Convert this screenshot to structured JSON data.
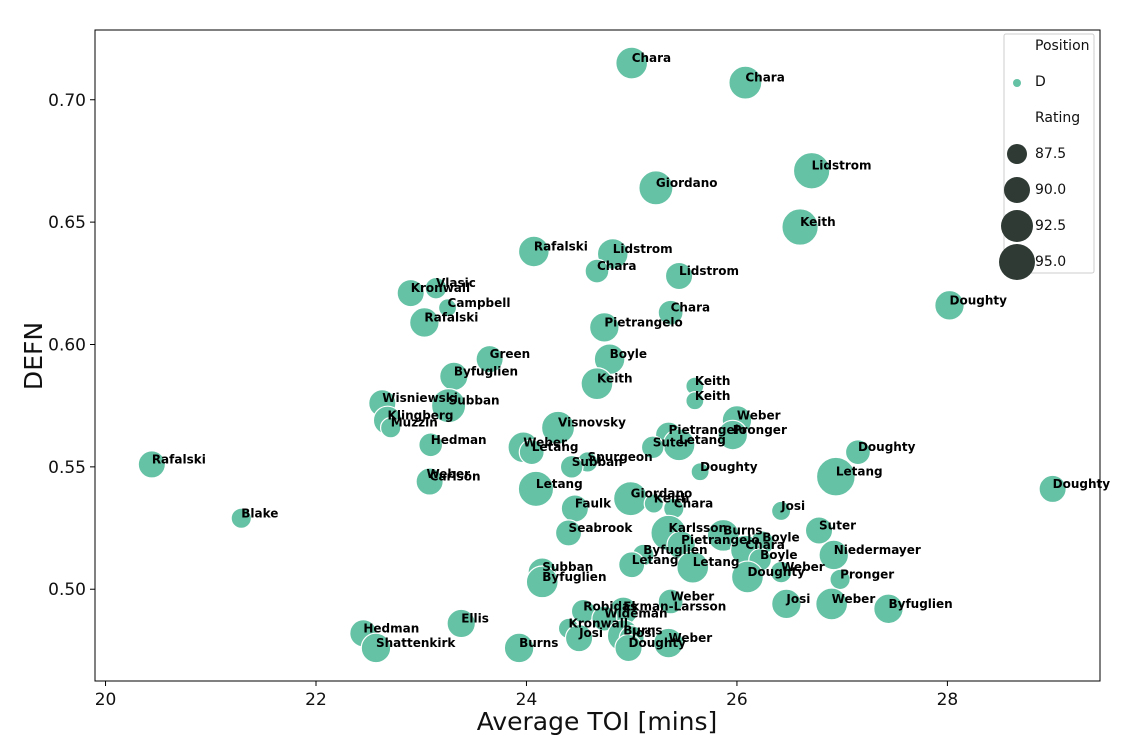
{
  "chart_data": {
    "type": "scatter",
    "xlabel": "Average TOI [mins]",
    "ylabel": "DEFN",
    "xlim": [
      19.9,
      29.45
    ],
    "ylim": [
      0.4625,
      0.7285
    ],
    "xticks": [
      20,
      22,
      24,
      26,
      28
    ],
    "xtick_labels": [
      "20",
      "22",
      "24",
      "26",
      "28"
    ],
    "yticks": [
      0.5,
      0.55,
      0.6,
      0.65,
      0.7
    ],
    "ytick_labels": [
      "0.50",
      "0.55",
      "0.60",
      "0.65",
      "0.70"
    ],
    "grid": false,
    "marker_color": "#66c2a5",
    "legend": {
      "placement": "top-right",
      "hue_title": "Position",
      "hue_entries": [
        {
          "label": "D",
          "color": "#66c2a5"
        }
      ],
      "size_title": "Rating",
      "size_entries": [
        87.5,
        90.0,
        92.5,
        95.0
      ],
      "size_entry_labels": [
        "87.5",
        "90.0",
        "92.5",
        "95.0"
      ],
      "size_entry_color": "#2f3a34"
    },
    "points": [
      {
        "name": "Chara",
        "x": 25.0,
        "y": 0.715,
        "rating": 91.0
      },
      {
        "name": "Chara",
        "x": 26.08,
        "y": 0.707,
        "rating": 91.5
      },
      {
        "name": "Lidstrom",
        "x": 26.71,
        "y": 0.671,
        "rating": 93.0
      },
      {
        "name": "Giordano",
        "x": 25.23,
        "y": 0.664,
        "rating": 92.0
      },
      {
        "name": "Keith",
        "x": 26.6,
        "y": 0.648,
        "rating": 93.0
      },
      {
        "name": "Rafalski",
        "x": 24.07,
        "y": 0.638,
        "rating": 90.5
      },
      {
        "name": "Lidstrom",
        "x": 24.82,
        "y": 0.637,
        "rating": 90.5
      },
      {
        "name": "Chara",
        "x": 24.67,
        "y": 0.63,
        "rating": 87.5
      },
      {
        "name": "Lidstrom",
        "x": 25.45,
        "y": 0.628,
        "rating": 89.0
      },
      {
        "name": "Vlasic",
        "x": 23.14,
        "y": 0.623,
        "rating": 86.5
      },
      {
        "name": "Kronwall",
        "x": 22.9,
        "y": 0.621,
        "rating": 89.0
      },
      {
        "name": "Campbell",
        "x": 23.25,
        "y": 0.615,
        "rating": 85.0
      },
      {
        "name": "Chara",
        "x": 25.37,
        "y": 0.613,
        "rating": 88.0
      },
      {
        "name": "Doughty",
        "x": 28.02,
        "y": 0.616,
        "rating": 90.0
      },
      {
        "name": "Rafalski",
        "x": 23.03,
        "y": 0.609,
        "rating": 90.0
      },
      {
        "name": "Pietrangelo",
        "x": 24.74,
        "y": 0.607,
        "rating": 90.0
      },
      {
        "name": "Green",
        "x": 23.65,
        "y": 0.594,
        "rating": 89.0
      },
      {
        "name": "Boyle",
        "x": 24.79,
        "y": 0.594,
        "rating": 90.5
      },
      {
        "name": "Byfuglien",
        "x": 23.31,
        "y": 0.587,
        "rating": 89.5
      },
      {
        "name": "Keith",
        "x": 24.67,
        "y": 0.584,
        "rating": 91.0
      },
      {
        "name": "Keith",
        "x": 25.6,
        "y": 0.583,
        "rating": 85.0
      },
      {
        "name": "Keith",
        "x": 25.6,
        "y": 0.577,
        "rating": 85.0
      },
      {
        "name": "Wisniewski",
        "x": 22.63,
        "y": 0.576,
        "rating": 89.0
      },
      {
        "name": "Subban",
        "x": 23.26,
        "y": 0.575,
        "rating": 92.0
      },
      {
        "name": "Klingberg",
        "x": 22.68,
        "y": 0.569,
        "rating": 89.5
      },
      {
        "name": "Weber",
        "x": 26.0,
        "y": 0.569,
        "rating": 90.0
      },
      {
        "name": "Muzzin",
        "x": 22.71,
        "y": 0.566,
        "rating": 86.0
      },
      {
        "name": "Visnovsky",
        "x": 24.3,
        "y": 0.566,
        "rating": 91.5
      },
      {
        "name": "Pietrangelo",
        "x": 25.35,
        "y": 0.563,
        "rating": 88.5
      },
      {
        "name": "Pronger",
        "x": 25.96,
        "y": 0.563,
        "rating": 90.0
      },
      {
        "name": "Letang",
        "x": 25.45,
        "y": 0.559,
        "rating": 91.0
      },
      {
        "name": "Hedman",
        "x": 23.09,
        "y": 0.559,
        "rating": 87.5
      },
      {
        "name": "Weber",
        "x": 23.97,
        "y": 0.558,
        "rating": 90.5
      },
      {
        "name": "Suter",
        "x": 25.2,
        "y": 0.558,
        "rating": 87.0
      },
      {
        "name": "Letang",
        "x": 24.05,
        "y": 0.556,
        "rating": 88.0
      },
      {
        "name": "Doughty",
        "x": 27.15,
        "y": 0.556,
        "rating": 88.0
      },
      {
        "name": "Spurgeon",
        "x": 24.58,
        "y": 0.552,
        "rating": 86.0
      },
      {
        "name": "Subban",
        "x": 24.43,
        "y": 0.55,
        "rating": 87.0
      },
      {
        "name": "Rafalski",
        "x": 20.44,
        "y": 0.551,
        "rating": 89.0
      },
      {
        "name": "Doughty",
        "x": 25.65,
        "y": 0.548,
        "rating": 85.0
      },
      {
        "name": "Letang",
        "x": 26.94,
        "y": 0.546,
        "rating": 94.0
      },
      {
        "name": "Weber",
        "x": 23.05,
        "y": 0.545,
        "rating": 86.0
      },
      {
        "name": "Carlson",
        "x": 23.08,
        "y": 0.544,
        "rating": 89.0
      },
      {
        "name": "Letang",
        "x": 24.09,
        "y": 0.541,
        "rating": 92.5
      },
      {
        "name": "Doughty",
        "x": 29.0,
        "y": 0.541,
        "rating": 89.0
      },
      {
        "name": "Giordano",
        "x": 24.99,
        "y": 0.537,
        "rating": 92.0
      },
      {
        "name": "Keith",
        "x": 25.21,
        "y": 0.535,
        "rating": 85.5
      },
      {
        "name": "Chara",
        "x": 25.4,
        "y": 0.533,
        "rating": 86.0
      },
      {
        "name": "Faulk",
        "x": 24.46,
        "y": 0.533,
        "rating": 89.0
      },
      {
        "name": "Josi",
        "x": 26.42,
        "y": 0.532,
        "rating": 85.5
      },
      {
        "name": "Blake",
        "x": 21.29,
        "y": 0.529,
        "rating": 86.0
      },
      {
        "name": "Suter",
        "x": 26.78,
        "y": 0.524,
        "rating": 89.0
      },
      {
        "name": "Karlsson",
        "x": 25.35,
        "y": 0.523,
        "rating": 92.5
      },
      {
        "name": "Seabrook",
        "x": 24.4,
        "y": 0.523,
        "rating": 88.5
      },
      {
        "name": "Burns",
        "x": 25.87,
        "y": 0.522,
        "rating": 91.0
      },
      {
        "name": "Boyle",
        "x": 26.24,
        "y": 0.519,
        "rating": 87.5
      },
      {
        "name": "Pietrangelo",
        "x": 25.47,
        "y": 0.518,
        "rating": 89.5
      },
      {
        "name": "Chara",
        "x": 26.08,
        "y": 0.516,
        "rating": 90.0
      },
      {
        "name": "Niedermayer",
        "x": 26.92,
        "y": 0.514,
        "rating": 90.0
      },
      {
        "name": "Byfuglien",
        "x": 25.11,
        "y": 0.514,
        "rating": 86.5
      },
      {
        "name": "Boyle",
        "x": 26.22,
        "y": 0.512,
        "rating": 87.0
      },
      {
        "name": "Letang",
        "x": 25.0,
        "y": 0.51,
        "rating": 88.5
      },
      {
        "name": "Letang",
        "x": 25.58,
        "y": 0.509,
        "rating": 91.0
      },
      {
        "name": "Weber",
        "x": 26.42,
        "y": 0.507,
        "rating": 86.5
      },
      {
        "name": "Subban",
        "x": 24.15,
        "y": 0.507,
        "rating": 89.5
      },
      {
        "name": "Doughty",
        "x": 26.1,
        "y": 0.505,
        "rating": 91.0
      },
      {
        "name": "Pronger",
        "x": 26.98,
        "y": 0.504,
        "rating": 86.0
      },
      {
        "name": "Byfuglien",
        "x": 24.15,
        "y": 0.503,
        "rating": 91.0
      },
      {
        "name": "Weber",
        "x": 25.37,
        "y": 0.495,
        "rating": 88.0
      },
      {
        "name": "Josi",
        "x": 26.47,
        "y": 0.494,
        "rating": 90.0
      },
      {
        "name": "Weber",
        "x": 26.9,
        "y": 0.494,
        "rating": 91.0
      },
      {
        "name": "Byfuglien",
        "x": 27.44,
        "y": 0.492,
        "rating": 90.0
      },
      {
        "name": "Ekman-Larsson",
        "x": 24.92,
        "y": 0.491,
        "rating": 89.5
      },
      {
        "name": "Robidas",
        "x": 24.54,
        "y": 0.491,
        "rating": 87.5
      },
      {
        "name": "Wideman",
        "x": 24.74,
        "y": 0.488,
        "rating": 88.0
      },
      {
        "name": "Ellis",
        "x": 23.38,
        "y": 0.486,
        "rating": 89.5
      },
      {
        "name": "Kronwall",
        "x": 24.4,
        "y": 0.484,
        "rating": 86.0
      },
      {
        "name": "Hedman",
        "x": 22.45,
        "y": 0.482,
        "rating": 89.0
      },
      {
        "name": "Burns",
        "x": 24.92,
        "y": 0.481,
        "rating": 91.0
      },
      {
        "name": "Josi",
        "x": 24.5,
        "y": 0.48,
        "rating": 89.0
      },
      {
        "name": "Josi",
        "x": 25.0,
        "y": 0.48,
        "rating": 88.0
      },
      {
        "name": "Weber",
        "x": 25.35,
        "y": 0.478,
        "rating": 90.0
      },
      {
        "name": "Shattenkirk",
        "x": 22.57,
        "y": 0.476,
        "rating": 90.0
      },
      {
        "name": "Burns",
        "x": 23.93,
        "y": 0.476,
        "rating": 90.0
      },
      {
        "name": "Doughty",
        "x": 24.97,
        "y": 0.476,
        "rating": 89.0
      }
    ]
  }
}
